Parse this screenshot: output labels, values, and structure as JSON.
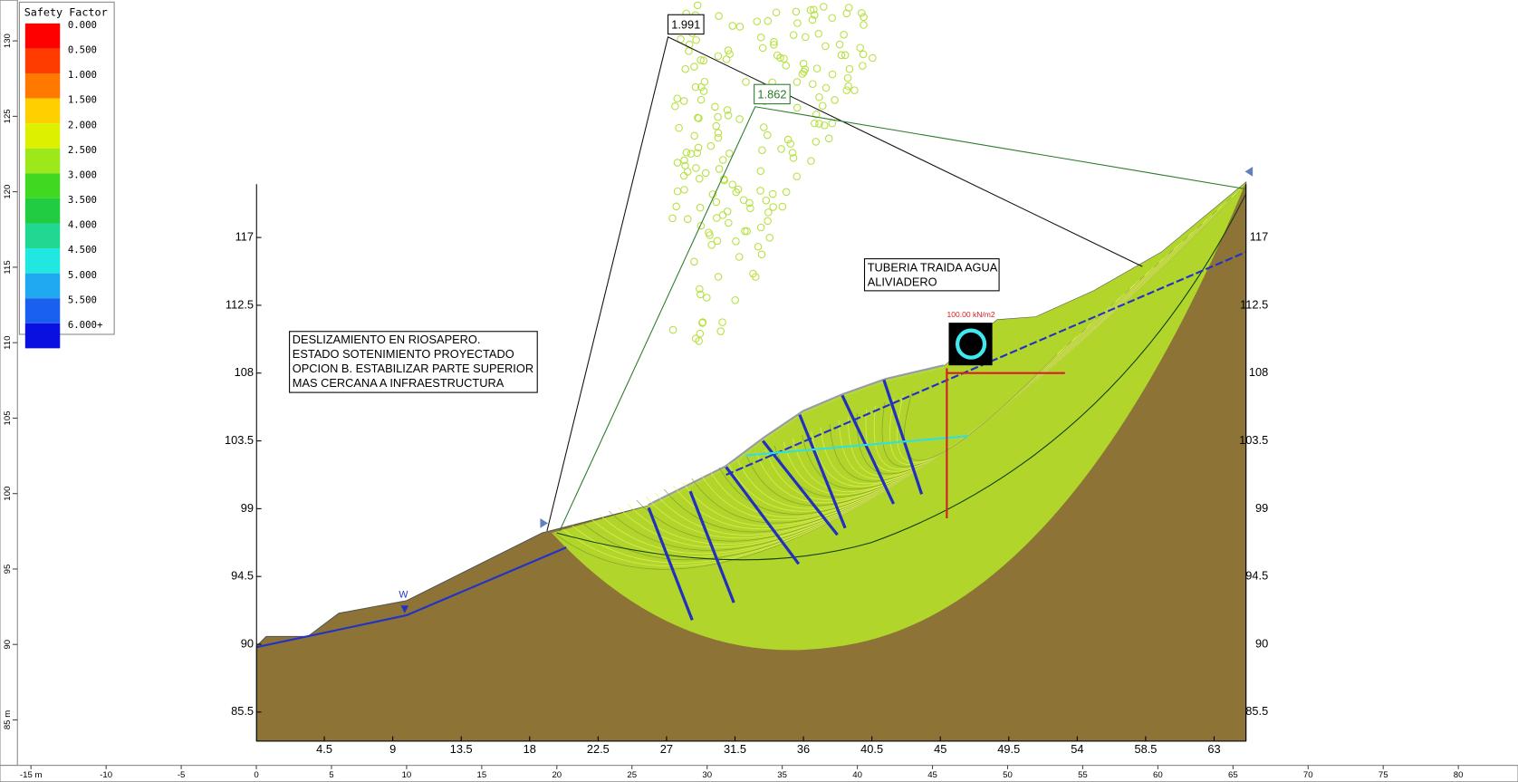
{
  "legend": {
    "title": "Safety Factor",
    "entries": [
      {
        "label": "0.000",
        "color": "#ff0000"
      },
      {
        "label": "0.500",
        "color": "#ff3c00"
      },
      {
        "label": "1.000",
        "color": "#ff7800"
      },
      {
        "label": "1.500",
        "color": "#ffd000"
      },
      {
        "label": "2.000",
        "color": "#ddf000"
      },
      {
        "label": "2.500",
        "color": "#9de81a"
      },
      {
        "label": "3.000",
        "color": "#40d820"
      },
      {
        "label": "3.500",
        "color": "#22cc40"
      },
      {
        "label": "4.000",
        "color": "#20d890"
      },
      {
        "label": "4.500",
        "color": "#20e8e0"
      },
      {
        "label": "5.000",
        "color": "#20a8f0"
      },
      {
        "label": "5.500",
        "color": "#1a60f0"
      },
      {
        "label": "6.000+",
        "color": "#0a10e0"
      }
    ]
  },
  "rulers": {
    "left": [
      "130",
      "125",
      "120",
      "115",
      "110",
      "105",
      "100",
      "95",
      "90",
      "85 m"
    ],
    "bottom": [
      "-15 m",
      "-10",
      "-5",
      "0",
      "5",
      "10",
      "15",
      "20",
      "25",
      "30",
      "35",
      "40",
      "45",
      "50",
      "55",
      "60",
      "65",
      "70",
      "75",
      "80"
    ]
  },
  "axes": {
    "y": [
      "117",
      "112.5",
      "108",
      "103.5",
      "99",
      "94.5",
      "90",
      "85.5"
    ],
    "x": [
      "4.5",
      "9",
      "13.5",
      "18",
      "22.5",
      "27",
      "31.5",
      "36",
      "40.5",
      "45",
      "49.5",
      "54",
      "58.5",
      "63"
    ]
  },
  "annotations": {
    "global_minimum": "1.991",
    "minimum": "1.862",
    "note": [
      "DESLIZAMIENTO EN RIOSAPERO.",
      "ESTADO SOTENIMIENTO PROYECTADO",
      "OPCION B. ESTABILIZAR PARTE SUPERIOR",
      "MAS CERCANA A INFRAESTRUCTURA"
    ],
    "pipe": [
      "TUBERIA TRAIDA AGUA",
      "ALIVIADERO"
    ],
    "load": "100.00 kN/m2",
    "water": "W"
  }
}
